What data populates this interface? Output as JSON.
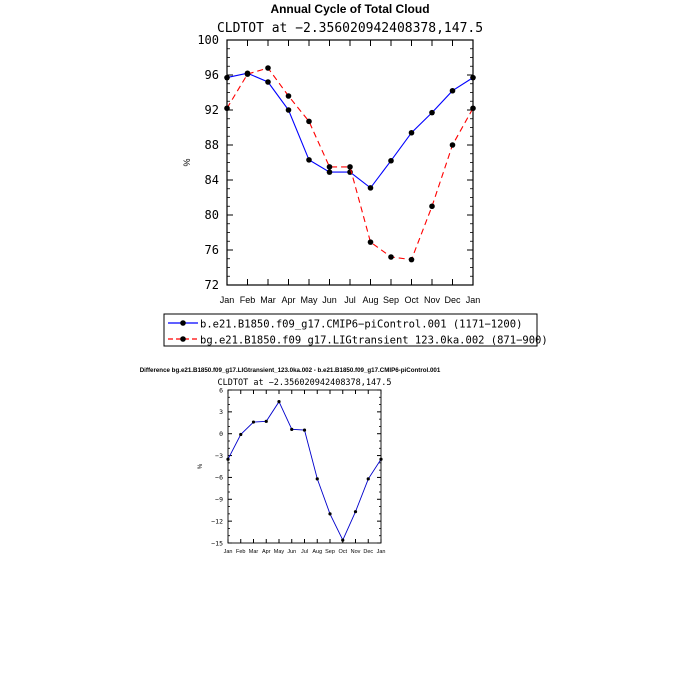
{
  "chart_data": [
    {
      "type": "line",
      "title": "Annual Cycle of Total Cloud",
      "subtitle": "CLDTOT at −2.356020942408378,147.5",
      "ylabel": "%",
      "xlabel": "",
      "categories": [
        "Jan",
        "Feb",
        "Mar",
        "Apr",
        "May",
        "Jun",
        "Jul",
        "Aug",
        "Sep",
        "Oct",
        "Nov",
        "Dec",
        "Jan"
      ],
      "ylim": [
        72,
        100
      ],
      "yticks": [
        72,
        76,
        80,
        84,
        88,
        92,
        96,
        100
      ],
      "grid": false,
      "legend_position": "bottom",
      "series": [
        {
          "name": "b.e21.B1850.f09_g17.CMIP6−piControl.001 (1171−1200)",
          "color": "#0000ff",
          "dash": "solid",
          "values": [
            95.7,
            96.2,
            95.2,
            92.0,
            86.3,
            84.9,
            84.9,
            83.1,
            86.2,
            89.4,
            91.7,
            94.2,
            95.7
          ]
        },
        {
          "name": "bg.e21.B1850.f09_g17.LIGtransient_123.0ka.002 (871−900)",
          "color": "#ff0000",
          "dash": "dashed",
          "values": [
            92.2,
            96.1,
            96.8,
            93.6,
            90.7,
            85.5,
            85.5,
            76.9,
            75.2,
            74.9,
            81.0,
            88.0,
            92.2
          ]
        }
      ]
    },
    {
      "type": "line",
      "title": "Difference bg.e21.B1850.f09_g17.LIGtransient_123.0ka.002 - b.e21.B1850.f09_g17.CMIP6-piControl.001",
      "subtitle": "CLDTOT at −2.356020942408378,147.5",
      "ylabel": "%",
      "xlabel": "",
      "categories": [
        "Jan",
        "Feb",
        "Mar",
        "Apr",
        "May",
        "Jun",
        "Jul",
        "Aug",
        "Sep",
        "Oct",
        "Nov",
        "Dec",
        "Jan"
      ],
      "ylim": [
        -15,
        6
      ],
      "yticks": [
        -15,
        -12,
        -9,
        -6,
        -3,
        0,
        3,
        6
      ],
      "grid": false,
      "series": [
        {
          "color": "#0000cc",
          "dash": "solid",
          "values": [
            -3.5,
            -0.1,
            1.6,
            1.7,
            4.4,
            0.6,
            0.5,
            -6.2,
            -11.0,
            -14.6,
            -10.7,
            -6.2,
            -3.5
          ]
        }
      ]
    }
  ]
}
